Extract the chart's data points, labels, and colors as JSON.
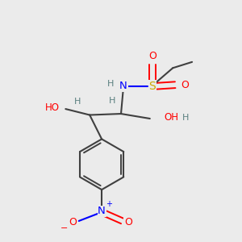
{
  "bg_color": "#ebebeb",
  "C": "#404040",
  "H": "#5a8080",
  "N": "#0000ff",
  "O": "#ff0000",
  "S": "#ccaa00",
  "bond_color": "#404040",
  "figsize": [
    3.0,
    3.0
  ],
  "dpi": 100
}
